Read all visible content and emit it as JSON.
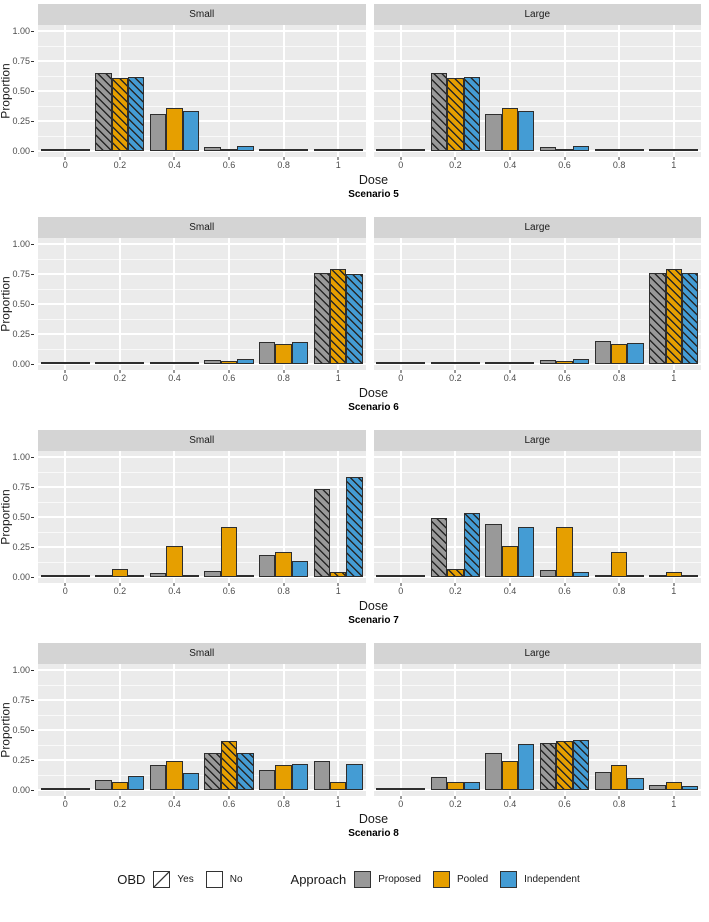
{
  "colors": {
    "proposed": "#999999",
    "pooled": "#E69F00",
    "independent": "#449CD4",
    "panel_bg": "#EBEBEB",
    "strip_bg": "#D4D4D4",
    "grid": "#FFFFFF",
    "bar_border": "#2E2E2E",
    "axis_text": "#4D4D4D",
    "hatch": "#262626"
  },
  "legend": {
    "obd": {
      "title": "OBD",
      "items": [
        {
          "label": "Yes",
          "hatched": true
        },
        {
          "label": "No",
          "hatched": false
        }
      ]
    },
    "approach": {
      "title": "Approach",
      "items": [
        {
          "label": "Proposed",
          "color_key": "proposed"
        },
        {
          "label": "Pooled",
          "color_key": "pooled"
        },
        {
          "label": "Independent",
          "color_key": "independent"
        }
      ]
    }
  },
  "chart_data": {
    "type": "bar",
    "xlabel": "Dose",
    "ylabel": "Proportion",
    "categories": [
      "0",
      "0.2",
      "0.4",
      "0.6",
      "0.8",
      "1"
    ],
    "ylim": [
      0,
      1
    ],
    "y_ticks": [
      0,
      0.25,
      0.5,
      0.75,
      1
    ],
    "y_tick_labels": [
      "0.00",
      "0.25",
      "0.50",
      "0.75",
      "1.00"
    ],
    "y_minor_ticks": [
      0.125,
      0.375,
      0.625,
      0.875
    ],
    "legend_position": "bottom",
    "scenarios": [
      {
        "caption": "Scenario 5",
        "facets": [
          {
            "label": "Small",
            "obd_dose_index": 1,
            "series": [
              {
                "name": "Proposed",
                "values": [
                  0.004,
                  0.65,
                  0.31,
                  0.03,
                  0.005,
                  0.004
                ]
              },
              {
                "name": "Pooled",
                "values": [
                  0.004,
                  0.61,
                  0.36,
                  0.02,
                  0.008,
                  0.004
                ]
              },
              {
                "name": "Independent",
                "values": [
                  0.004,
                  0.62,
                  0.33,
                  0.04,
                  0.005,
                  0.004
                ]
              }
            ]
          },
          {
            "label": "Large",
            "obd_dose_index": 1,
            "series": [
              {
                "name": "Proposed",
                "values": [
                  0.004,
                  0.65,
                  0.31,
                  0.03,
                  0.005,
                  0.004
                ]
              },
              {
                "name": "Pooled",
                "values": [
                  0.004,
                  0.61,
                  0.36,
                  0.02,
                  0.008,
                  0.004
                ]
              },
              {
                "name": "Independent",
                "values": [
                  0.004,
                  0.62,
                  0.33,
                  0.04,
                  0.005,
                  0.004
                ]
              }
            ]
          }
        ]
      },
      {
        "caption": "Scenario 6",
        "facets": [
          {
            "label": "Small",
            "obd_dose_index": 5,
            "series": [
              {
                "name": "Proposed",
                "values": [
                  0.004,
                  0.008,
                  0.02,
                  0.03,
                  0.18,
                  0.76
                ]
              },
              {
                "name": "Pooled",
                "values": [
                  0.004,
                  0.006,
                  0.012,
                  0.022,
                  0.165,
                  0.79
                ]
              },
              {
                "name": "Independent",
                "values": [
                  0.004,
                  0.008,
                  0.015,
                  0.045,
                  0.18,
                  0.75
                ]
              }
            ]
          },
          {
            "label": "Large",
            "obd_dose_index": 5,
            "series": [
              {
                "name": "Proposed",
                "values": [
                  0.004,
                  0.008,
                  0.02,
                  0.035,
                  0.19,
                  0.76
                ]
              },
              {
                "name": "Pooled",
                "values": [
                  0.004,
                  0.006,
                  0.012,
                  0.022,
                  0.165,
                  0.79
                ]
              },
              {
                "name": "Independent",
                "values": [
                  0.004,
                  0.01,
                  0.015,
                  0.045,
                  0.175,
                  0.76
                ]
              }
            ]
          }
        ]
      },
      {
        "caption": "Scenario 7",
        "facets": [
          {
            "label": "Small",
            "obd_dose_index": 5,
            "series": [
              {
                "name": "Proposed",
                "values": [
                  0.004,
                  0.02,
                  0.03,
                  0.05,
                  0.18,
                  0.73
                ]
              },
              {
                "name": "Pooled",
                "values": [
                  0.004,
                  0.07,
                  0.26,
                  0.42,
                  0.21,
                  0.04
                ]
              },
              {
                "name": "Independent",
                "values": [
                  0.004,
                  0.01,
                  0.01,
                  0.02,
                  0.13,
                  0.83
                ]
              }
            ]
          },
          {
            "label": "Large",
            "obd_dose_index": 1,
            "series": [
              {
                "name": "Proposed",
                "values": [
                  0.004,
                  0.49,
                  0.44,
                  0.06,
                  0.01,
                  0.004
                ]
              },
              {
                "name": "Pooled",
                "values": [
                  0.004,
                  0.07,
                  0.26,
                  0.42,
                  0.21,
                  0.04
                ]
              },
              {
                "name": "Independent",
                "values": [
                  0.004,
                  0.53,
                  0.42,
                  0.04,
                  0.01,
                  0.004
                ]
              }
            ]
          }
        ]
      },
      {
        "caption": "Scenario 8",
        "facets": [
          {
            "label": "Small",
            "obd_dose_index": 3,
            "series": [
              {
                "name": "Proposed",
                "values": [
                  0.004,
                  0.08,
                  0.21,
                  0.31,
                  0.17,
                  0.24
                ]
              },
              {
                "name": "Pooled",
                "values": [
                  0.004,
                  0.07,
                  0.24,
                  0.41,
                  0.21,
                  0.07
                ]
              },
              {
                "name": "Independent",
                "values": [
                  0.004,
                  0.12,
                  0.14,
                  0.31,
                  0.22,
                  0.22
                ]
              }
            ]
          },
          {
            "label": "Large",
            "obd_dose_index": 3,
            "series": [
              {
                "name": "Proposed",
                "values": [
                  0.004,
                  0.11,
                  0.31,
                  0.39,
                  0.15,
                  0.04
                ]
              },
              {
                "name": "Pooled",
                "values": [
                  0.004,
                  0.07,
                  0.24,
                  0.41,
                  0.21,
                  0.07
                ]
              },
              {
                "name": "Independent",
                "values": [
                  0.004,
                  0.07,
                  0.38,
                  0.42,
                  0.1,
                  0.03
                ]
              }
            ]
          }
        ]
      }
    ]
  }
}
